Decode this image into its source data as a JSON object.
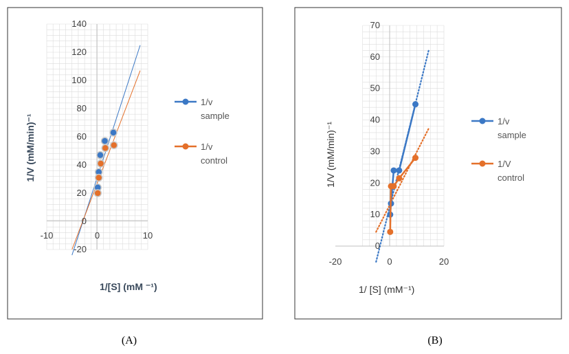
{
  "colors": {
    "sample": "#3b78c5",
    "control": "#e4702a",
    "grid": "#dcdcdc",
    "frame": "#333333"
  },
  "chart_data": [
    {
      "type": "scatter",
      "caption": "(A)",
      "xlabel": "1/[S] (mM ⁻¹)",
      "ylabel": "1/V (mM/min)⁻¹",
      "xlim": [
        -10,
        10
      ],
      "ylim": [
        -20,
        140
      ],
      "x_ticks": [
        "-10",
        "0",
        "10"
      ],
      "y_ticks": [
        "-20",
        "0",
        "20",
        "40",
        "60",
        "80",
        "100",
        "120",
        "140"
      ],
      "grid": true,
      "legend_position": "right",
      "series": [
        {
          "name": "1/v sample",
          "name_lines": [
            "1/v",
            "sample"
          ],
          "x": [
            0.1,
            0.3,
            0.6,
            1.5,
            3.2
          ],
          "y": [
            24,
            35,
            47,
            57,
            63
          ],
          "trendline": {
            "x": [
              -5,
              8.5
            ],
            "y": [
              -24,
              125
            ]
          }
        },
        {
          "name": "1/v control",
          "name_lines": [
            "1/v",
            "control"
          ],
          "x": [
            0.1,
            0.3,
            0.7,
            1.6,
            3.3
          ],
          "y": [
            20,
            31,
            41,
            52,
            54
          ],
          "trendline": {
            "x": [
              -5,
              8.5
            ],
            "y": [
              -20,
              107
            ]
          }
        }
      ]
    },
    {
      "type": "line",
      "caption": "(B)",
      "xlabel": "1/ [S] (mM⁻¹)",
      "ylabel": "1/V (mM/min)⁻¹",
      "xlim": [
        -20,
        20
      ],
      "ylim": [
        0,
        70
      ],
      "x_ticks": [
        "-20",
        "0",
        "20"
      ],
      "y_ticks": [
        "0",
        "10",
        "20",
        "30",
        "40",
        "50",
        "60",
        "70"
      ],
      "grid": true,
      "legend_position": "right",
      "series": [
        {
          "name": "1/v sample",
          "name_lines": [
            "1/v",
            "sample"
          ],
          "x": [
            0.2,
            0.5,
            1.5,
            3.5,
            9.5
          ],
          "y": [
            10,
            13.5,
            24,
            24,
            45
          ],
          "trendline": {
            "x": [
              -5,
              14.5
            ],
            "y": [
              -5,
              62.5
            ]
          }
        },
        {
          "name": "1/V control",
          "name_lines": [
            "1/V",
            "control"
          ],
          "x": [
            0.2,
            0.5,
            1.5,
            3.5,
            9.5
          ],
          "y": [
            4.5,
            19,
            19,
            21.5,
            28
          ],
          "trendline": {
            "x": [
              -5,
              14.5
            ],
            "y": [
              4.5,
              37.5
            ]
          }
        }
      ]
    }
  ]
}
